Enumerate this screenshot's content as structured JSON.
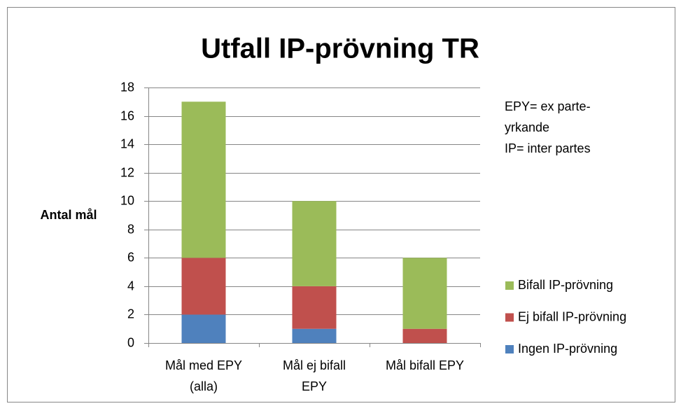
{
  "chart_data": {
    "type": "stacked_bar",
    "title": "Utfall IP-prövning TR",
    "y_label": "Antal mål",
    "annotation": [
      "EPY= ex parte-",
      "yrkande",
      "IP= inter partes"
    ],
    "categories": [
      [
        "Mål med EPY",
        "(alla)"
      ],
      [
        "Mål ej bifall",
        "EPY"
      ],
      [
        "Mål bifall EPY"
      ]
    ],
    "series": [
      {
        "name": "Ingen IP-prövning",
        "color": "#4f81bd",
        "values": [
          2,
          1,
          0
        ]
      },
      {
        "name": "Ej bifall IP-prövning",
        "color": "#c0504d",
        "values": [
          4,
          3,
          1
        ]
      },
      {
        "name": "Bifall IP-prövning",
        "color": "#9bbb59",
        "values": [
          11,
          6,
          5
        ]
      }
    ],
    "ylim": [
      0,
      18
    ],
    "yticks": [
      0,
      2,
      4,
      6,
      8,
      10,
      12,
      14,
      16,
      18
    ],
    "grid": true
  }
}
